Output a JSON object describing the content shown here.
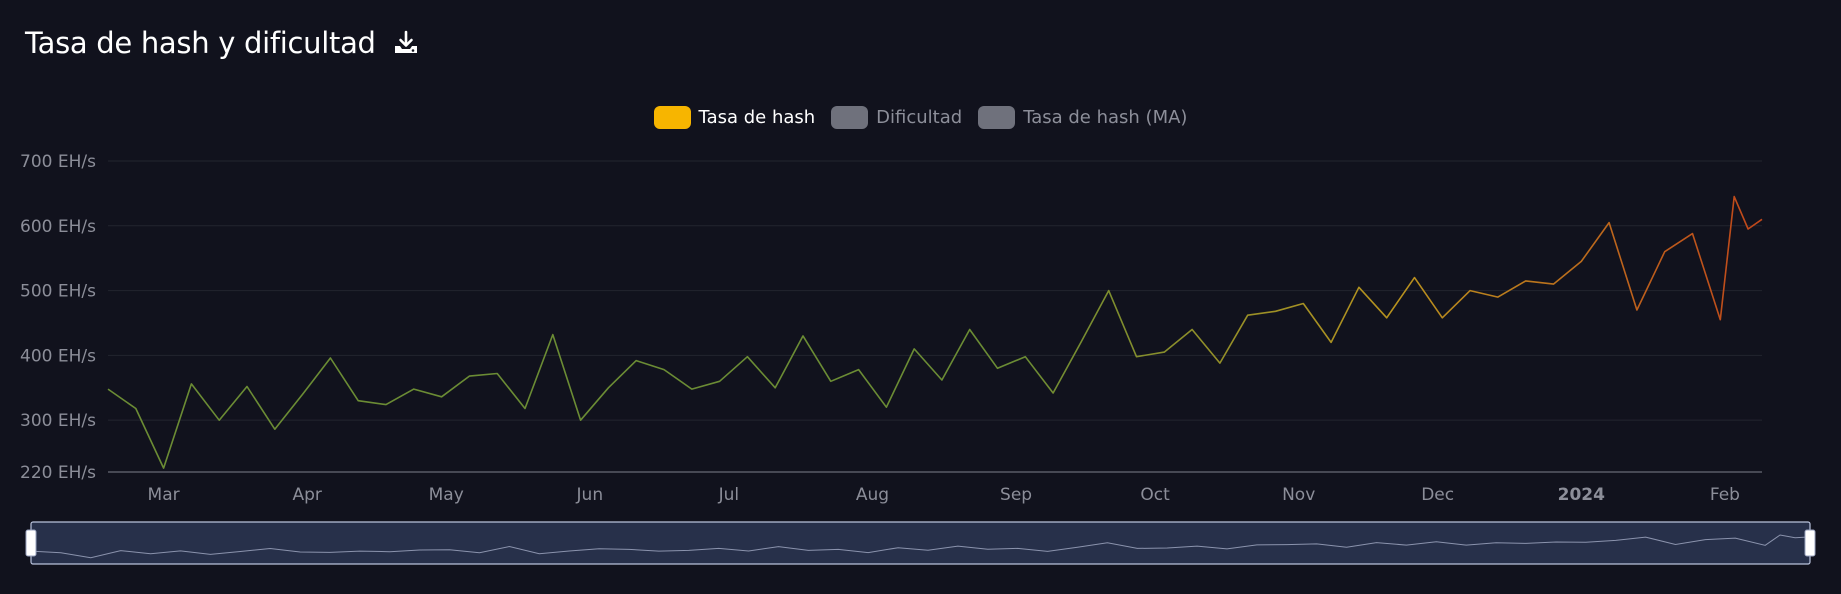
{
  "header": {
    "title": "Tasa de hash y dificultad",
    "download_icon": "download-icon"
  },
  "legend": [
    {
      "label": "Tasa de hash",
      "color": "#f7b500",
      "active": true
    },
    {
      "label": "Dificultad",
      "color": "#6f717c",
      "active": false
    },
    {
      "label": "Tasa de hash (MA)",
      "color": "#6f717c",
      "active": false
    }
  ],
  "colors": {
    "background": "#11121d",
    "gridline": "#23252f",
    "axis_text": "#8c8e99",
    "line_start": "#6b8c34",
    "line_mid": "#b8921e",
    "line_end": "#c0461a",
    "zoom_fill": "#27304a",
    "zoom_border": "#b9c2dc"
  },
  "chart_data": {
    "type": "line",
    "title": "Tasa de hash y dificultad",
    "ylim": [
      220,
      700
    ],
    "yticks": [
      {
        "value": 220,
        "label": "220 EH/s"
      },
      {
        "value": 300,
        "label": "300 EH/s"
      },
      {
        "value": 400,
        "label": "400 EH/s"
      },
      {
        "value": 500,
        "label": "500 EH/s"
      },
      {
        "value": 600,
        "label": "600 EH/s"
      },
      {
        "value": 700,
        "label": "700 EH/s"
      }
    ],
    "xlim": [
      "2023-02-17",
      "2024-02-09"
    ],
    "xticks": [
      {
        "date": "2023-03-01",
        "label": "Mar",
        "bold": false
      },
      {
        "date": "2023-04-01",
        "label": "Apr",
        "bold": false
      },
      {
        "date": "2023-05-01",
        "label": "May",
        "bold": false
      },
      {
        "date": "2023-06-01",
        "label": "Jun",
        "bold": false
      },
      {
        "date": "2023-07-01",
        "label": "Jul",
        "bold": false
      },
      {
        "date": "2023-08-01",
        "label": "Aug",
        "bold": false
      },
      {
        "date": "2023-09-01",
        "label": "Sep",
        "bold": false
      },
      {
        "date": "2023-10-01",
        "label": "Oct",
        "bold": false
      },
      {
        "date": "2023-11-01",
        "label": "Nov",
        "bold": false
      },
      {
        "date": "2023-12-01",
        "label": "Dec",
        "bold": false
      },
      {
        "date": "2024-01-01",
        "label": "2024",
        "bold": true
      },
      {
        "date": "2024-02-01",
        "label": "Feb",
        "bold": false
      }
    ],
    "grid": true,
    "series": [
      {
        "name": "Tasa de hash",
        "x": [
          "2023-02-17",
          "2023-02-23",
          "2023-03-01",
          "2023-03-07",
          "2023-03-13",
          "2023-03-19",
          "2023-03-25",
          "2023-03-31",
          "2023-04-06",
          "2023-04-12",
          "2023-04-18",
          "2023-04-24",
          "2023-04-30",
          "2023-05-06",
          "2023-05-12",
          "2023-05-18",
          "2023-05-24",
          "2023-05-30",
          "2023-06-05",
          "2023-06-11",
          "2023-06-17",
          "2023-06-23",
          "2023-06-29",
          "2023-07-05",
          "2023-07-11",
          "2023-07-17",
          "2023-07-23",
          "2023-07-29",
          "2023-08-04",
          "2023-08-10",
          "2023-08-16",
          "2023-08-22",
          "2023-08-28",
          "2023-09-03",
          "2023-09-09",
          "2023-09-15",
          "2023-09-21",
          "2023-09-27",
          "2023-10-03",
          "2023-10-09",
          "2023-10-15",
          "2023-10-21",
          "2023-10-27",
          "2023-11-02",
          "2023-11-08",
          "2023-11-14",
          "2023-11-20",
          "2023-11-26",
          "2023-12-02",
          "2023-12-08",
          "2023-12-14",
          "2023-12-20",
          "2023-12-26",
          "2024-01-01",
          "2024-01-07",
          "2024-01-13",
          "2024-01-19",
          "2024-01-25",
          "2024-01-31",
          "2024-02-03",
          "2024-02-06",
          "2024-02-09"
        ],
        "values": [
          348,
          318,
          226,
          356,
          300,
          352,
          286,
          340,
          396,
          330,
          324,
          348,
          336,
          368,
          372,
          318,
          432,
          300,
          350,
          392,
          378,
          348,
          360,
          398,
          350,
          430,
          360,
          378,
          320,
          410,
          362,
          440,
          380,
          398,
          342,
          420,
          500,
          398,
          405,
          440,
          388,
          462,
          468,
          480,
          420,
          505,
          458,
          520,
          458,
          500,
          490,
          515,
          510,
          545,
          605,
          470,
          560,
          588,
          455,
          645,
          595,
          610
        ]
      }
    ]
  },
  "zoom": {
    "range_start": 0,
    "range_end": 1
  }
}
